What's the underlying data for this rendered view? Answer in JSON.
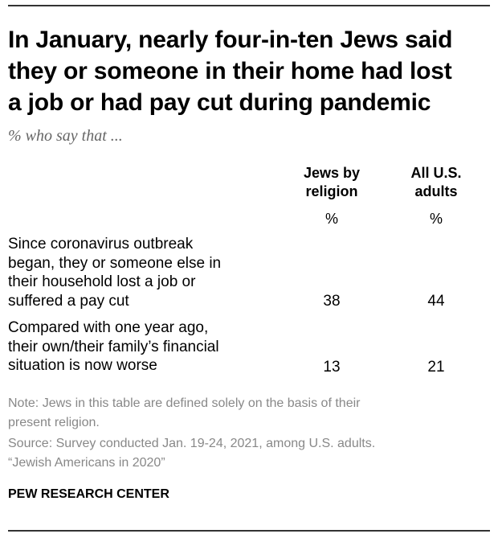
{
  "title": "In January, nearly four-in-ten Jews said\nthey or someone in their home had lost\na job or had pay cut during pandemic",
  "subtitle": "% who say that ...",
  "columns": [
    {
      "label": "Jews by\nreligion",
      "unit": "%"
    },
    {
      "label": "All U.S.\nadults",
      "unit": "%"
    }
  ],
  "rows": [
    {
      "label": "Since coronavirus outbreak\nbegan, they or someone else in\ntheir household lost a job or\nsuffered a pay cut",
      "values": [
        "38",
        "44"
      ]
    },
    {
      "label": "Compared with one year ago,\ntheir own/their family’s financial\nsituation is now worse",
      "values": [
        "13",
        "21"
      ]
    }
  ],
  "note": "Note: Jews in this table are defined solely on the basis of their\npresent religion.",
  "source": "Source: Survey conducted Jan. 19-24, 2021, among U.S. adults.\n“Jewish Americans in 2020”",
  "footer": "PEW RESEARCH CENTER"
}
